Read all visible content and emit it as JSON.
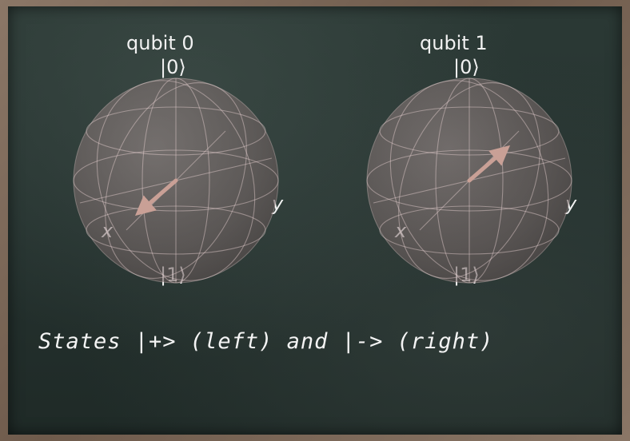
{
  "qubits": [
    {
      "title": "qubit 0",
      "ket_zero": "|0⟩",
      "ket_one": "|1⟩",
      "axis_x": "x",
      "axis_y": "y",
      "state_vector": [
        1,
        0,
        0
      ]
    },
    {
      "title": "qubit 1",
      "ket_zero": "|0⟩",
      "ket_one": "|1⟩",
      "axis_x": "x",
      "axis_y": "y",
      "state_vector": [
        -1,
        0,
        0
      ]
    }
  ],
  "caption": "States |+> (left) and |-> (right)",
  "colors": {
    "sphere": "#d8c2c2",
    "grid": "#e8d2d2",
    "arrow": "#c9a096",
    "text": "#f1f1f1"
  }
}
